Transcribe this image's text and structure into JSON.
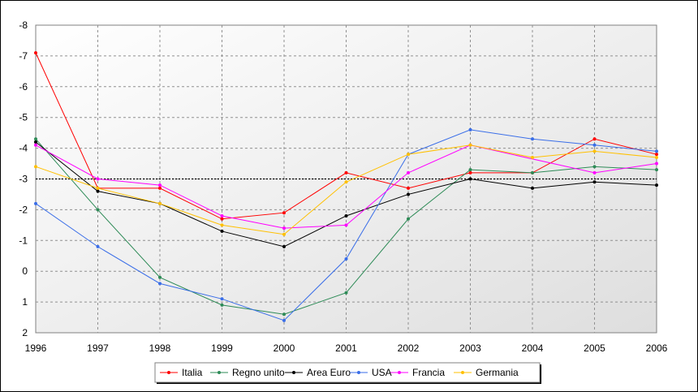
{
  "chart_data": {
    "type": "line",
    "title": "",
    "xlabel": "",
    "ylabel": "",
    "x": [
      1996,
      1997,
      1998,
      1999,
      2000,
      2001,
      2002,
      2003,
      2004,
      2005,
      2006
    ],
    "x_tick_labels": [
      "1996",
      "1997",
      "1998",
      "1999",
      "2000",
      "2001",
      "2002",
      "2003",
      "2004",
      "2005",
      "2006"
    ],
    "y_axis_inverted": true,
    "ylim": [
      -8,
      2
    ],
    "y_ticks": [
      -8,
      -7,
      -6,
      -5,
      -4,
      -3,
      -2,
      -1,
      0,
      1,
      2
    ],
    "y_tick_labels": [
      "-8",
      "-7",
      "-6",
      "-5",
      "-4",
      "-3",
      "-2",
      "-1",
      "0",
      "1",
      "2"
    ],
    "grid": true,
    "reference_line_y": -3,
    "legend_position": "bottom",
    "series": [
      {
        "name": "Italia",
        "color": "#ff0000",
        "values": [
          -7.1,
          -2.7,
          -2.7,
          -1.7,
          -1.9,
          -3.2,
          -2.7,
          -3.2,
          -3.2,
          -4.3,
          -3.8
        ]
      },
      {
        "name": "Regno unito",
        "color": "#2e8b57",
        "values": [
          -4.3,
          -2.0,
          0.2,
          1.1,
          1.4,
          0.7,
          -1.7,
          -3.3,
          -3.2,
          -3.4,
          -3.3
        ]
      },
      {
        "name": "Area Euro",
        "color": "#000000",
        "values": [
          -4.2,
          -2.6,
          -2.2,
          -1.3,
          -0.8,
          -1.8,
          -2.5,
          -3.0,
          -2.7,
          -2.9,
          -2.8
        ]
      },
      {
        "name": "USA",
        "color": "#3a6ee8",
        "values": [
          -2.2,
          -0.8,
          0.4,
          0.9,
          1.6,
          -0.4,
          -3.8,
          -4.6,
          -4.3,
          -4.1,
          -3.9
        ]
      },
      {
        "name": "Francia",
        "color": "#ff00ff",
        "values": [
          -4.1,
          -3.0,
          -2.8,
          -1.8,
          -1.4,
          -1.5,
          -3.2,
          -4.1,
          null,
          -3.2,
          -3.5
        ]
      },
      {
        "name": "Germania",
        "color": "#ffc000",
        "values": [
          -3.4,
          -2.7,
          -2.2,
          -1.5,
          -1.2,
          -2.9,
          -3.8,
          -4.1,
          -3.7,
          -3.9,
          -3.7
        ]
      }
    ]
  }
}
